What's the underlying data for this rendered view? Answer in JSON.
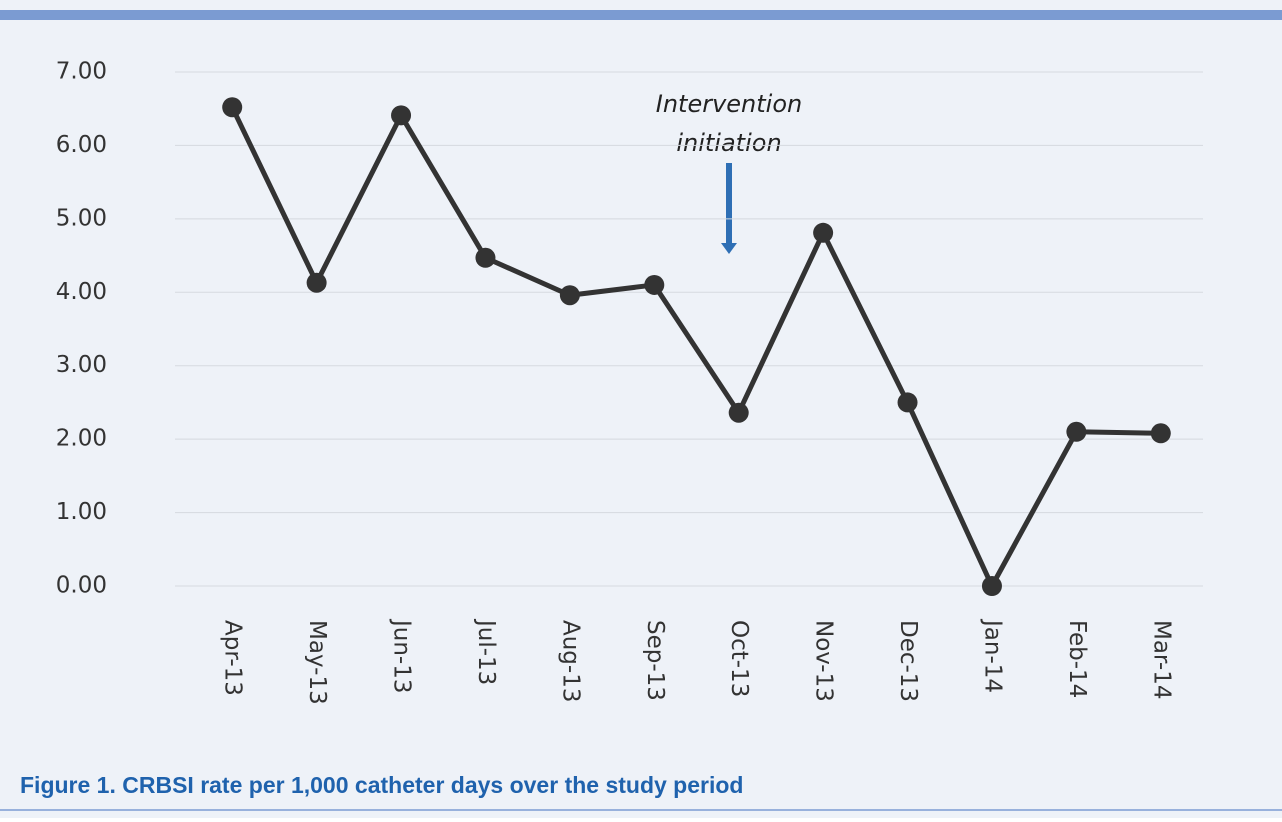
{
  "chart_data": {
    "type": "line",
    "caption": "Figure 1. CRBSI rate per 1,000 catheter days over the study period",
    "annotation": [
      "Intervention",
      "initiation"
    ],
    "categories": [
      "Apr-13",
      "May-13",
      "Jun-13",
      "Jul-13",
      "Aug-13",
      "Sep-13",
      "Oct-13",
      "Nov-13",
      "Dec-13",
      "Jan-14",
      "Feb-14",
      "Mar-14"
    ],
    "values": [
      6.52,
      4.13,
      6.41,
      4.47,
      3.96,
      4.1,
      2.36,
      4.81,
      2.5,
      0.0,
      2.1,
      2.08
    ],
    "color": "#333333",
    "ylim": [
      0,
      7
    ],
    "yticks": [
      {
        "value": 0,
        "label": "0.00"
      },
      {
        "value": 1,
        "label": "1.00"
      },
      {
        "value": 2,
        "label": "2.00"
      },
      {
        "value": 3,
        "label": "3.00"
      },
      {
        "value": 4,
        "label": "4.00"
      },
      {
        "value": 5,
        "label": "5.00"
      },
      {
        "value": 6,
        "label": "6.00"
      },
      {
        "value": 7,
        "label": "7.00"
      }
    ],
    "grid": true
  }
}
